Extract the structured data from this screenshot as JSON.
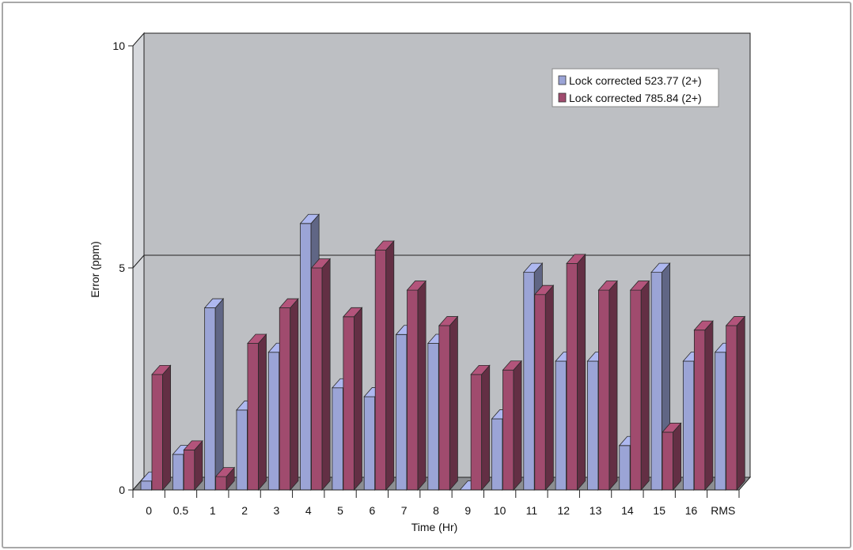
{
  "chart_data": {
    "type": "bar",
    "title": "",
    "xlabel": "Time (Hr)",
    "ylabel": "Error (ppm)",
    "ylim": [
      0,
      10
    ],
    "yticks": [
      "0",
      "5",
      "10"
    ],
    "categories": [
      "0",
      "0.5",
      "1",
      "2",
      "3",
      "4",
      "5",
      "6",
      "7",
      "8",
      "9",
      "10",
      "11",
      "12",
      "13",
      "14",
      "15",
      "16",
      "RMS"
    ],
    "series": [
      {
        "name": "Lock corrected 523.77 (2+)",
        "color": "#9ba4d6",
        "values": [
          0.2,
          0.8,
          4.1,
          1.8,
          3.1,
          6.0,
          2.3,
          2.1,
          3.5,
          3.3,
          0.0,
          1.6,
          4.9,
          2.9,
          2.9,
          1.0,
          4.9,
          2.9,
          3.1
        ]
      },
      {
        "name": "Lock corrected 785.84 (2+)",
        "color": "#a04b6e",
        "values": [
          2.6,
          0.9,
          0.3,
          3.3,
          4.1,
          5.0,
          3.9,
          5.4,
          4.5,
          3.7,
          2.6,
          2.7,
          4.4,
          5.1,
          4.5,
          4.5,
          1.3,
          3.6,
          3.7
        ]
      }
    ],
    "legend_position": "top-right",
    "grid": "single line at 5",
    "style": "3d-bar",
    "colors": {
      "back_wall": "#bdbfc3",
      "floor": "#8c8e92",
      "side_wall": "#d6d8dc"
    }
  }
}
